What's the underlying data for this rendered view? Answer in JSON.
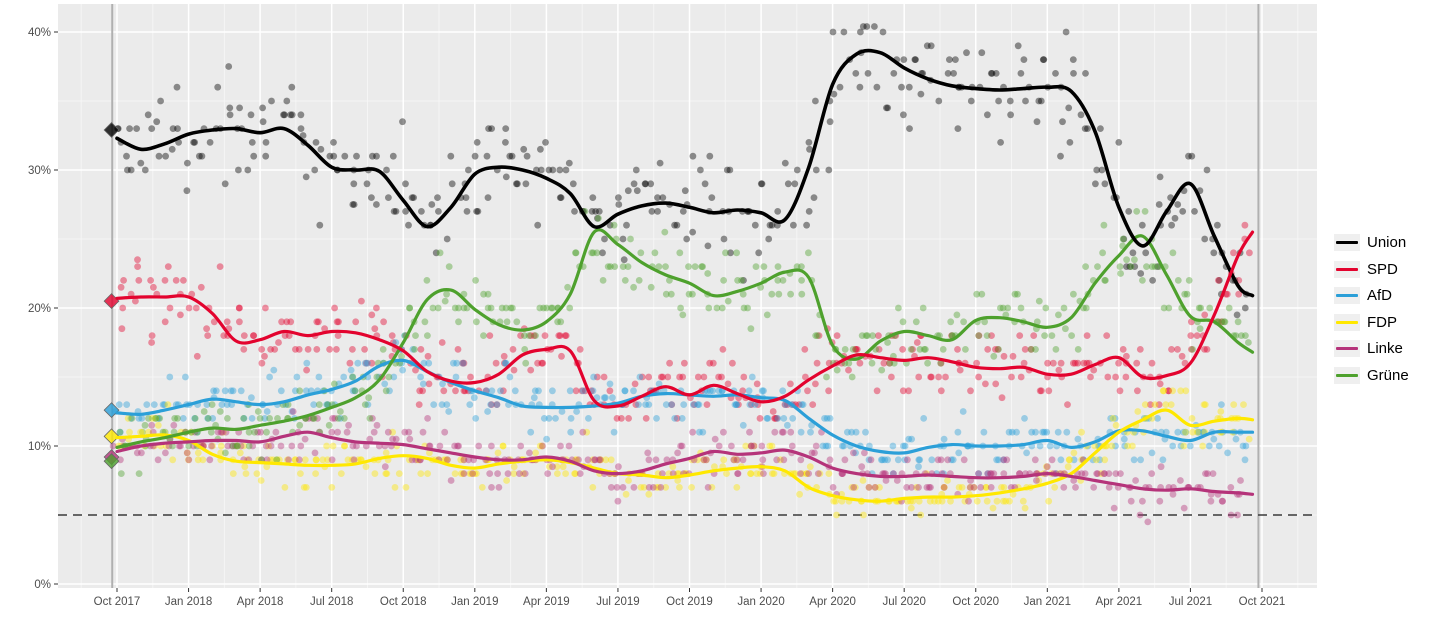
{
  "chart_data": {
    "type": "scatter",
    "description": "German federal election voting-intention polls Oct 2017 - Sep 2021: individual poll results (dots) with smoothed trend lines per party, 5% threshold dashed line, vertical lines at the 2017 and 2021 elections, diamonds = 2017 election results.",
    "x_ticks": [
      "Oct 2017",
      "Jan 2018",
      "Apr 2018",
      "Jul 2018",
      "Oct 2018",
      "Jan 2019",
      "Apr 2019",
      "Jul 2019",
      "Oct 2019",
      "Jan 2020",
      "Apr 2020",
      "Jul 2020",
      "Oct 2020",
      "Jan 2021",
      "Apr 2021",
      "Jul 2021",
      "Oct 2021"
    ],
    "y_ticks": [
      "0%",
      "10%",
      "20%",
      "30%",
      "40%"
    ],
    "y_tick_values": [
      0,
      10,
      20,
      30,
      40
    ],
    "y_minor_values": [
      5,
      15,
      25,
      35
    ],
    "ylim": [
      0,
      42
    ],
    "grid": {
      "panel_bg": "#EBEBEB",
      "major": "#FFFFFF",
      "minor": "#F6F6F6"
    },
    "threshold_line": {
      "value": 5,
      "style": "dashed",
      "color": "#3a3a3a"
    },
    "election_lines": {
      "color": "#b0b0b0",
      "month_positions": [
        -0.2,
        47.85
      ]
    },
    "election_results_2017": {
      "Union": 32.9,
      "SPD": 20.5,
      "AfD": 12.6,
      "FDP": 10.7,
      "Linke": 9.2,
      "Grüne": 8.9
    },
    "scatter_style": {
      "points_per_series": 345,
      "radius": 3.4,
      "opacity": 0.42,
      "value_rounding": 0.5,
      "seed": 42
    },
    "legend_position": "right-center",
    "series": [
      {
        "name": "Union",
        "color": "#000000",
        "trend_monthly": [
          32.3,
          31.5,
          31.9,
          32.6,
          32.9,
          33.0,
          32.7,
          33.0,
          31.8,
          30.2,
          30.0,
          29.9,
          27.8,
          25.9,
          27.3,
          29.7,
          30.2,
          30.0,
          29.4,
          28.3,
          25.9,
          26.8,
          27.4,
          27.6,
          27.3,
          26.9,
          27.1,
          26.9,
          26.4,
          30.2,
          36.2,
          38.4,
          38.5,
          37.4,
          36.6,
          36.1,
          35.9,
          35.8,
          35.9,
          36.0,
          35.7,
          32.8,
          27.3,
          24.5,
          27.0,
          29.0,
          25.2,
          21.6
        ],
        "trend_end": {
          "month": 47.6,
          "value": 20.9
        }
      },
      {
        "name": "SPD",
        "color": "#E3032E",
        "trend_monthly": [
          20.7,
          20.8,
          20.8,
          20.8,
          19.6,
          17.6,
          17.7,
          18.3,
          18.0,
          18.3,
          18.2,
          17.7,
          16.9,
          15.4,
          14.7,
          14.6,
          15.2,
          16.6,
          17.0,
          16.9,
          13.3,
          12.9,
          13.6,
          14.3,
          13.7,
          14.4,
          13.8,
          13.2,
          13.6,
          14.8,
          15.8,
          16.6,
          16.4,
          16.2,
          16.4,
          16.1,
          15.7,
          15.6,
          15.7,
          15.2,
          15.2,
          15.9,
          16.4,
          15.0,
          15.1,
          16.0,
          19.5,
          23.8
        ],
        "trend_end": {
          "month": 47.6,
          "value": 25.5
        }
      },
      {
        "name": "AfD",
        "color": "#2B9FD8",
        "trend_monthly": [
          12.4,
          12.3,
          12.6,
          13.0,
          13.4,
          13.2,
          13.0,
          13.2,
          13.7,
          14.1,
          14.7,
          15.8,
          16.2,
          15.4,
          14.6,
          14.0,
          13.5,
          12.9,
          12.8,
          12.8,
          12.9,
          13.1,
          13.6,
          13.8,
          13.7,
          13.6,
          13.7,
          13.5,
          13.3,
          12.0,
          10.8,
          10.0,
          9.6,
          9.5,
          9.9,
          10.1,
          10.0,
          10.0,
          10.1,
          10.4,
          9.9,
          10.3,
          11.1,
          11.1,
          10.7,
          10.4,
          11.0,
          11.0
        ],
        "trend_end": {
          "month": 47.6,
          "value": 11.0
        }
      },
      {
        "name": "FDP",
        "color": "#FFE800",
        "trend_monthly": [
          10.6,
          10.7,
          10.8,
          10.4,
          9.4,
          8.9,
          8.8,
          8.7,
          8.6,
          8.6,
          8.7,
          9.1,
          9.3,
          9.1,
          8.6,
          8.4,
          8.7,
          8.9,
          9.0,
          8.8,
          8.4,
          8.0,
          7.9,
          7.7,
          7.9,
          8.2,
          8.4,
          8.5,
          8.2,
          7.0,
          6.4,
          6.1,
          6.0,
          6.2,
          6.3,
          6.3,
          6.4,
          6.6,
          6.9,
          7.3,
          8.0,
          9.5,
          11.0,
          11.9,
          12.6,
          11.5,
          11.8,
          12.0
        ],
        "trend_end": {
          "month": 47.6,
          "value": 11.9
        }
      },
      {
        "name": "Linke",
        "color": "#B5337A",
        "trend_monthly": [
          9.6,
          10.0,
          10.2,
          10.3,
          10.4,
          10.4,
          10.3,
          10.7,
          11.0,
          10.6,
          10.3,
          10.2,
          10.1,
          9.8,
          9.5,
          9.2,
          9.0,
          9.0,
          9.2,
          8.9,
          8.2,
          8.0,
          8.2,
          8.7,
          9.1,
          9.6,
          9.4,
          9.5,
          9.7,
          9.2,
          8.4,
          8.0,
          7.8,
          7.8,
          7.9,
          7.8,
          7.7,
          7.7,
          7.8,
          8.0,
          7.8,
          7.5,
          7.2,
          6.9,
          6.8,
          6.9,
          6.7,
          6.6
        ],
        "trend_end": {
          "month": 47.6,
          "value": 6.5
        }
      },
      {
        "name": "Grüne",
        "color": "#4EA12D",
        "trend_monthly": [
          9.9,
          10.3,
          10.6,
          11.0,
          11.3,
          11.2,
          11.5,
          11.8,
          12.2,
          12.8,
          13.5,
          14.8,
          17.5,
          20.6,
          21.3,
          19.9,
          18.8,
          18.4,
          19.0,
          21.0,
          25.5,
          24.6,
          23.3,
          22.4,
          21.8,
          20.9,
          21.2,
          21.8,
          22.6,
          22.2,
          17.3,
          16.3,
          17.6,
          18.3,
          18.0,
          17.7,
          19.1,
          19.3,
          19.0,
          18.6,
          19.3,
          21.8,
          23.8,
          25.2,
          22.4,
          19.4,
          19.0,
          17.5
        ],
        "trend_end": {
          "month": 47.6,
          "value": 16.8
        }
      }
    ]
  }
}
